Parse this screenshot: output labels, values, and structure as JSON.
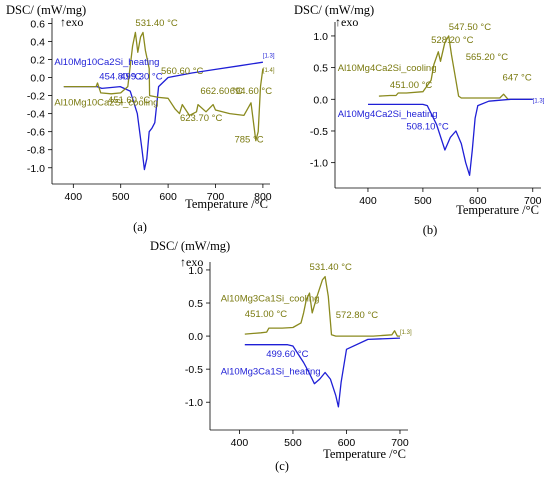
{
  "colors": {
    "heating": "#1f1fd6",
    "cooling": "#8a8a1e",
    "axis": "#000000",
    "annotation": "#7a7a10",
    "heat_annotation": "#1f1fd6"
  },
  "chart_data": [
    {
      "id": "a",
      "type": "line",
      "panel_label": "(a)",
      "ylabel": "DSC/ (mW/mg)",
      "exo_label": "↑exo",
      "xlabel": "Temperature /°C",
      "xlim": [
        355,
        815
      ],
      "ylim": [
        -1.18,
        0.66
      ],
      "xticks": [
        "400",
        "500",
        "600",
        "700",
        "800"
      ],
      "yticks": [
        "0.6",
        "0.4",
        "0.2",
        "0.0",
        "-0.2",
        "-0.4",
        "-0.6",
        "-0.8",
        "-1.0"
      ],
      "series": [
        {
          "name": "Al10Mg10Ca2Si_heating",
          "role": "heating",
          "x": [
            380,
            420,
            450,
            460,
            480,
            499,
            520,
            535,
            545,
            550,
            555,
            560,
            566,
            572,
            580,
            600,
            650,
            700,
            750,
            800
          ],
          "y": [
            -0.1,
            -0.1,
            -0.1,
            -0.12,
            -0.11,
            -0.1,
            -0.15,
            -0.4,
            -0.8,
            -1.02,
            -0.9,
            -0.6,
            -0.56,
            -0.5,
            -0.1,
            0.0,
            0.05,
            0.09,
            0.13,
            0.17
          ]
        },
        {
          "name": "Al10Mg10Ca2Si_cooling",
          "role": "cooling",
          "x": [
            380,
            420,
            448,
            451,
            458,
            480,
            500,
            515,
            525,
            531,
            536,
            542,
            547,
            552,
            560,
            561,
            580,
            600,
            615,
            624,
            630,
            645,
            660,
            663,
            680,
            695,
            700,
            730,
            760,
            775,
            785,
            790,
            795,
            800
          ],
          "y": [
            -0.1,
            -0.1,
            -0.1,
            -0.06,
            -0.17,
            -0.18,
            -0.17,
            -0.1,
            0.35,
            0.5,
            0.28,
            0.45,
            0.5,
            0.3,
            0.1,
            -0.2,
            -0.22,
            -0.23,
            -0.35,
            -0.4,
            -0.3,
            -0.42,
            -0.38,
            -0.3,
            -0.38,
            -0.3,
            -0.36,
            -0.4,
            -0.42,
            -0.28,
            -0.7,
            -0.6,
            -0.1,
            0.1
          ]
        }
      ],
      "annotations": [
        {
          "text": "531.40 °C",
          "x": 531,
          "y": 0.57,
          "role": "cooling"
        },
        {
          "text": "454.80 °C",
          "x": 454.8,
          "y": -0.02,
          "role": "heating"
        },
        {
          "text": "499.30 °C",
          "x": 499,
          "y": -0.02,
          "role": "heating"
        },
        {
          "text": "560.60 °C",
          "x": 585,
          "y": 0.04,
          "role": "cooling"
        },
        {
          "text": "451.60 °C",
          "x": 473,
          "y": -0.28,
          "role": "cooling"
        },
        {
          "text": "662.60 °C",
          "x": 668,
          "y": -0.18,
          "role": "cooling"
        },
        {
          "text": "694.60 °C",
          "x": 730,
          "y": -0.18,
          "role": "cooling"
        },
        {
          "text": "623.70 °C",
          "x": 625,
          "y": -0.48,
          "role": "cooling"
        },
        {
          "text": "785 °C",
          "x": 740,
          "y": -0.72,
          "role": "cooling"
        },
        {
          "text": "Al10Mg10Ca2Si_heating",
          "x": 360,
          "y": 0.14,
          "role": "heating"
        },
        {
          "text": "Al10Mg10Ca2Si_cooling",
          "x": 360,
          "y": -0.31,
          "role": "cooling"
        },
        {
          "text": "[1.3]",
          "x": 800,
          "y": 0.22,
          "role": "heating"
        },
        {
          "text": "[1.4]",
          "x": 800,
          "y": 0.06,
          "role": "cooling"
        }
      ]
    },
    {
      "id": "b",
      "type": "line",
      "panel_label": "(b)",
      "ylabel": "DSC/ (mW/mg)",
      "exo_label": "↑exo",
      "xlabel": "Temperature /°C",
      "xlim": [
        340,
        715
      ],
      "ylim": [
        -1.4,
        1.22
      ],
      "xticks": [
        "400",
        "500",
        "600",
        "700"
      ],
      "yticks": [
        "1.0",
        "0.5",
        "0.0",
        "-0.5",
        "-1.0"
      ],
      "series": [
        {
          "name": "Al10Mg4Ca2Si_cooling",
          "role": "cooling",
          "x": [
            420,
            440,
            451,
            455,
            470,
            500,
            515,
            520,
            528,
            532,
            540,
            547,
            552,
            560,
            565,
            570,
            600,
            640,
            647,
            655,
            680,
            700
          ],
          "y": [
            0.05,
            0.06,
            0.06,
            0.1,
            0.1,
            0.12,
            0.3,
            0.55,
            0.75,
            0.6,
            0.9,
            1.0,
            0.7,
            0.3,
            0.05,
            0.02,
            0.02,
            0.02,
            0.08,
            0.0,
            0.0,
            0.0
          ]
        },
        {
          "name": "Al10Mg4Ca2Si_heating",
          "role": "heating",
          "x": [
            400,
            450,
            500,
            508,
            525,
            540,
            550,
            560,
            570,
            578,
            585,
            590,
            595,
            600,
            620,
            660,
            700
          ],
          "y": [
            -0.08,
            -0.08,
            -0.08,
            -0.1,
            -0.4,
            -0.8,
            -0.6,
            -0.5,
            -0.7,
            -1.0,
            -1.2,
            -0.8,
            -0.3,
            -0.1,
            -0.03,
            0.0,
            0.0
          ]
        }
      ],
      "annotations": [
        {
          "text": "547.50 °C",
          "x": 547,
          "y": 1.09,
          "role": "cooling"
        },
        {
          "text": "528.20 °C",
          "x": 515,
          "y": 0.89,
          "role": "cooling"
        },
        {
          "text": "Al10Mg4Ca2Si_cooling",
          "x": 345,
          "y": 0.45,
          "role": "cooling"
        },
        {
          "text": "451.00 °C",
          "x": 440,
          "y": 0.18,
          "role": "cooling"
        },
        {
          "text": "565.20 °C",
          "x": 578,
          "y": 0.62,
          "role": "cooling"
        },
        {
          "text": "647 °C",
          "x": 645,
          "y": 0.3,
          "role": "cooling"
        },
        {
          "text": "Al10Mg4Ca2Si_heating",
          "x": 345,
          "y": -0.28,
          "role": "heating"
        },
        {
          "text": "508.10 °C",
          "x": 470,
          "y": -0.48,
          "role": "heating"
        },
        {
          "text": "[1.3]",
          "x": 700,
          "y": -0.05,
          "role": "heating"
        }
      ]
    },
    {
      "id": "c",
      "type": "line",
      "panel_label": "(c)",
      "ylabel": "DSC/ (mW/mg)",
      "exo_label": "↑exo",
      "xlabel": "Temperature /°C",
      "xlim": [
        345,
        715
      ],
      "ylim": [
        -1.42,
        1.12
      ],
      "xticks": [
        "400",
        "500",
        "600",
        "700"
      ],
      "yticks": [
        "1.0",
        "0.5",
        "0.0",
        "-0.5",
        "-1.0"
      ],
      "series": [
        {
          "name": "Al10Mg3Ca1Si_cooling",
          "role": "cooling",
          "x": [
            410,
            440,
            451,
            455,
            480,
            500,
            515,
            520,
            525,
            531,
            536,
            545,
            555,
            560,
            566,
            572,
            580,
            600,
            650,
            685,
            690,
            695,
            700
          ],
          "y": [
            0.03,
            0.05,
            0.06,
            0.12,
            0.12,
            0.13,
            0.2,
            0.35,
            0.55,
            0.65,
            0.35,
            0.6,
            0.85,
            0.9,
            0.6,
            0.02,
            0.0,
            0.0,
            0.0,
            0.02,
            0.08,
            0.0,
            0.0
          ]
        },
        {
          "name": "Al10Mg3Ca1Si_heating",
          "role": "heating",
          "x": [
            410,
            450,
            490,
            500,
            520,
            530,
            540,
            550,
            560,
            570,
            580,
            585,
            590,
            600,
            640,
            700
          ],
          "y": [
            -0.13,
            -0.13,
            -0.13,
            -0.15,
            -0.4,
            -0.55,
            -0.72,
            -0.65,
            -0.55,
            -0.65,
            -0.9,
            -1.07,
            -0.7,
            -0.2,
            -0.05,
            -0.03
          ]
        }
      ],
      "annotations": [
        {
          "text": "531.40 °C",
          "x": 531,
          "y": 1.0,
          "role": "cooling"
        },
        {
          "text": "Al10Mg3Ca1Si_cooling",
          "x": 365,
          "y": 0.52,
          "role": "cooling"
        },
        {
          "text": "451.00 °C",
          "x": 410,
          "y": 0.29,
          "role": "cooling"
        },
        {
          "text": "572.80 °C",
          "x": 580,
          "y": 0.27,
          "role": "cooling"
        },
        {
          "text": "499.60 °C",
          "x": 450,
          "y": -0.32,
          "role": "heating"
        },
        {
          "text": "Al10Mg3Ca1Si_heating",
          "x": 365,
          "y": -0.58,
          "role": "heating"
        },
        {
          "text": "[1.3]",
          "x": 700,
          "y": 0.03,
          "role": "cooling"
        }
      ]
    }
  ]
}
